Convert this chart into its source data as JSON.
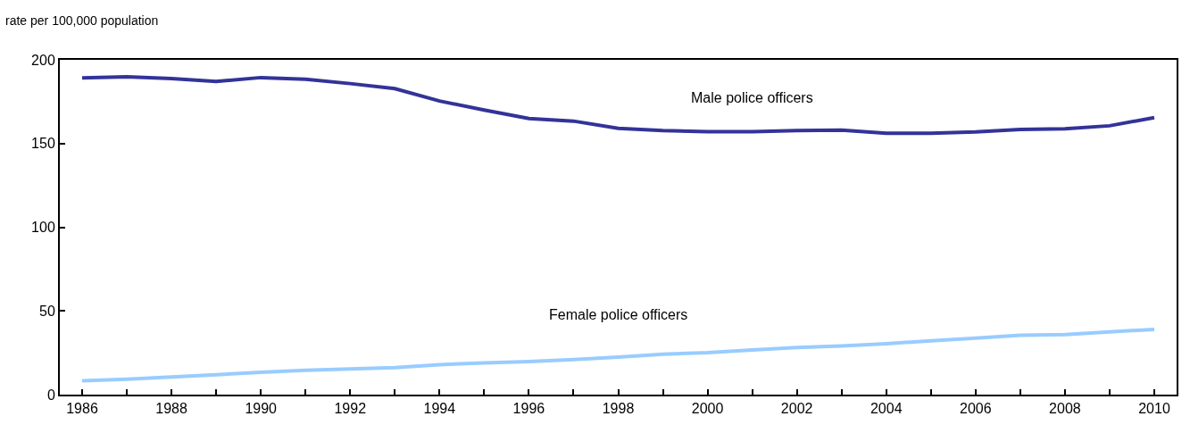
{
  "chart_data": {
    "type": "line",
    "ylabel": "rate per 100,000 population",
    "x": [
      1986,
      1987,
      1988,
      1989,
      1990,
      1991,
      1992,
      1993,
      1994,
      1995,
      1996,
      1997,
      1998,
      1999,
      2000,
      2001,
      2002,
      2003,
      2004,
      2005,
      2006,
      2007,
      2008,
      2009,
      2010
    ],
    "series": [
      {
        "name": "Male police officers",
        "color": "#333399",
        "values": [
          189.2,
          189.9,
          188.8,
          187.1,
          189.4,
          188.4,
          185.8,
          182.8,
          175.4,
          170,
          164.9,
          163.4,
          159.1,
          157.7,
          157.1,
          157.1,
          157.7,
          158,
          156.2,
          156.2,
          157,
          158.4,
          158.8,
          160.6,
          165.5
        ]
      },
      {
        "name": "Female police officers",
        "color": "#99ccff",
        "values": [
          8.3,
          9.2,
          10.5,
          11.9,
          13.4,
          14.5,
          15.4,
          16.2,
          17.9,
          19,
          19.8,
          20.9,
          22.4,
          24.2,
          25.1,
          26.7,
          28.2,
          29.1,
          30.4,
          32.2,
          33.7,
          35.5,
          35.9,
          37.5,
          39
        ]
      }
    ],
    "xlim": [
      1985.5,
      2010.5
    ],
    "xticks": [
      1986,
      {
        "value": 1987,
        "label": null
      },
      1988,
      {
        "value": 1989,
        "label": null
      },
      1990,
      {
        "value": 1991,
        "label": null
      },
      1992,
      {
        "value": 1993,
        "label": null
      },
      1994,
      {
        "value": 1995,
        "label": null
      },
      1996,
      {
        "value": 1997,
        "label": null
      },
      1998,
      {
        "value": 1999,
        "label": null
      },
      2000,
      {
        "value": 2001,
        "label": null
      },
      2002,
      {
        "value": 2003,
        "label": null
      },
      2004,
      {
        "value": 2005,
        "label": null
      },
      2006,
      {
        "value": 2007,
        "label": null
      },
      2008,
      {
        "value": 2009,
        "label": null
      },
      2010
    ],
    "ylim": [
      0,
      200
    ],
    "yticks": [
      0,
      50,
      100,
      150,
      200
    ],
    "legend": false,
    "marker": "none",
    "line_style": "solid"
  }
}
